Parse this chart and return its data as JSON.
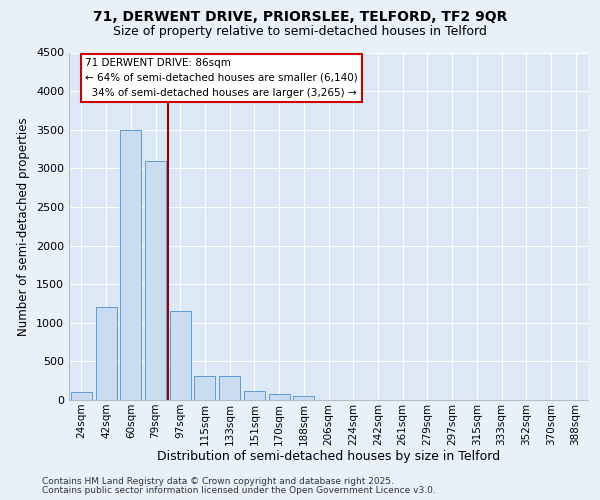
{
  "title1": "71, DERWENT DRIVE, PRIORSLEE, TELFORD, TF2 9QR",
  "title2": "Size of property relative to semi-detached houses in Telford",
  "xlabel": "Distribution of semi-detached houses by size in Telford",
  "ylabel": "Number of semi-detached properties",
  "categories": [
    "24sqm",
    "42sqm",
    "60sqm",
    "79sqm",
    "97sqm",
    "115sqm",
    "133sqm",
    "151sqm",
    "170sqm",
    "188sqm",
    "206sqm",
    "224sqm",
    "242sqm",
    "261sqm",
    "279sqm",
    "297sqm",
    "315sqm",
    "333sqm",
    "352sqm",
    "370sqm",
    "388sqm"
  ],
  "values": [
    100,
    1200,
    3500,
    3100,
    1150,
    310,
    310,
    120,
    80,
    50,
    0,
    0,
    0,
    0,
    0,
    0,
    0,
    0,
    0,
    0,
    0
  ],
  "bar_color": "#c9dcf0",
  "bar_edge_color": "#5b9bd5",
  "vline_x": 3.5,
  "vline_color": "#990000",
  "annotation_text": "71 DERWENT DRIVE: 86sqm\n← 64% of semi-detached houses are smaller (6,140)\n  34% of semi-detached houses are larger (3,265) →",
  "annotation_box_color": "white",
  "annotation_box_edge": "#cc0000",
  "ylim": [
    0,
    4500
  ],
  "yticks": [
    0,
    500,
    1000,
    1500,
    2000,
    2500,
    3000,
    3500,
    4000,
    4500
  ],
  "footer1": "Contains HM Land Registry data © Crown copyright and database right 2025.",
  "footer2": "Contains public sector information licensed under the Open Government Licence v3.0.",
  "bg_color": "#e8f0f8",
  "plot_bg_color": "#dce8f5",
  "grid_color": "#ffffff"
}
